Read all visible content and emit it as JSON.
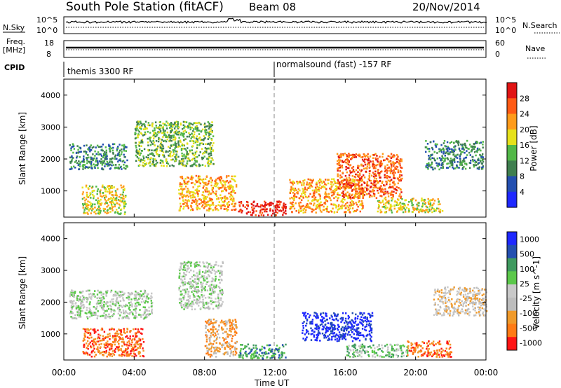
{
  "header": {
    "station": "South Pole Station (fitACF)",
    "beam": "Beam 08",
    "date": "20/Nov/2014"
  },
  "summary_panels": {
    "nsky_label": "N.Sky",
    "nsky_ticks": [
      "10^5",
      "10^0"
    ],
    "nsearch_label": "N.Search",
    "nsearch_ticks": [
      "10^5",
      "10^0"
    ],
    "freq_label_1": "Freq.",
    "freq_label_2": "[MHz]",
    "freq_ticks": [
      "18",
      "8"
    ],
    "nave_label": "Nave",
    "nave_ticks": [
      "60",
      "0"
    ],
    "cpid_label": "CPID",
    "cpid_segments": [
      "themis 3300 RF",
      "normalsound (fast) -157 RF"
    ],
    "cpid_split_time": "12:00"
  },
  "x_axis": {
    "label": "Time UT",
    "ticks": [
      "00:00",
      "04:00",
      "08:00",
      "12:00",
      "16:00",
      "20:00",
      "00:00"
    ]
  },
  "colors": {
    "power": [
      "#1e28ff",
      "#234fb0",
      "#3f7f4f",
      "#52b848",
      "#e6e11b",
      "#ff9b1a",
      "#ff5a14",
      "#e11414"
    ],
    "velocity": [
      "#ff1414",
      "#ff7a14",
      "#f09a2a",
      "#bdbdbd",
      "#c9c9c9",
      "#5bc84a",
      "#3f9a5f",
      "#234fb0",
      "#1e28ff"
    ]
  },
  "chart_data": [
    {
      "type": "heatmap",
      "title": "Power",
      "ylabel": "Slant Range [km]",
      "xlabel": "",
      "ylim": [
        180,
        4500
      ],
      "yticks": [
        "1000",
        "2000",
        "3000",
        "4000"
      ],
      "colorbar": {
        "label": "Power [dB]",
        "ticks": [
          "4",
          "8",
          "12",
          "16",
          "20",
          "24",
          "28"
        ],
        "range": [
          0,
          32
        ]
      },
      "regions": [
        {
          "t": [
            0.3,
            3.6
          ],
          "r": [
            1700,
            2500
          ],
          "level": 2
        },
        {
          "t": [
            1.0,
            3.5
          ],
          "r": [
            300,
            1200
          ],
          "level": 4
        },
        {
          "t": [
            4.0,
            8.5
          ],
          "r": [
            1800,
            3200
          ],
          "level": 3
        },
        {
          "t": [
            6.5,
            9.8
          ],
          "r": [
            400,
            1500
          ],
          "level": 5
        },
        {
          "t": [
            9.9,
            12.6
          ],
          "r": [
            250,
            700
          ],
          "level": 7
        },
        {
          "t": [
            12.8,
            17.0
          ],
          "r": [
            350,
            1400
          ],
          "level": 5
        },
        {
          "t": [
            15.5,
            19.2
          ],
          "r": [
            800,
            2200
          ],
          "level": 6
        },
        {
          "t": [
            17.8,
            21.5
          ],
          "r": [
            350,
            800
          ],
          "level": 4
        },
        {
          "t": [
            20.5,
            23.8
          ],
          "r": [
            1700,
            2600
          ],
          "level": 2
        }
      ]
    },
    {
      "type": "heatmap",
      "title": "Velocity",
      "ylabel": "Slant Range [km]",
      "xlabel": "Time UT",
      "ylim": [
        180,
        4500
      ],
      "yticks": [
        "1000",
        "2000",
        "3000",
        "4000"
      ],
      "colorbar": {
        "label": "Velocity [m s^-1]",
        "ticks": [
          "1000",
          "500",
          "100",
          "25",
          "-25",
          "-100",
          "-500",
          "-1000"
        ],
        "range": [
          -1200,
          1200
        ]
      },
      "regions": [
        {
          "t": [
            0.3,
            5.0
          ],
          "r": [
            1500,
            2400
          ],
          "level": 4
        },
        {
          "t": [
            1.0,
            4.5
          ],
          "r": [
            300,
            1200
          ],
          "level": 1
        },
        {
          "t": [
            6.5,
            9.0
          ],
          "r": [
            1800,
            3300
          ],
          "level": 4
        },
        {
          "t": [
            8.0,
            9.8
          ],
          "r": [
            300,
            1500
          ],
          "level": 2
        },
        {
          "t": [
            9.9,
            12.6
          ],
          "r": [
            250,
            700
          ],
          "level": 6
        },
        {
          "t": [
            13.5,
            17.5
          ],
          "r": [
            800,
            1700
          ],
          "level": 8
        },
        {
          "t": [
            16.0,
            19.5
          ],
          "r": [
            300,
            700
          ],
          "level": 5
        },
        {
          "t": [
            19.5,
            22.0
          ],
          "r": [
            300,
            800
          ],
          "level": 1
        },
        {
          "t": [
            21.0,
            24.0
          ],
          "r": [
            1600,
            2500
          ],
          "level": 3
        }
      ]
    }
  ]
}
